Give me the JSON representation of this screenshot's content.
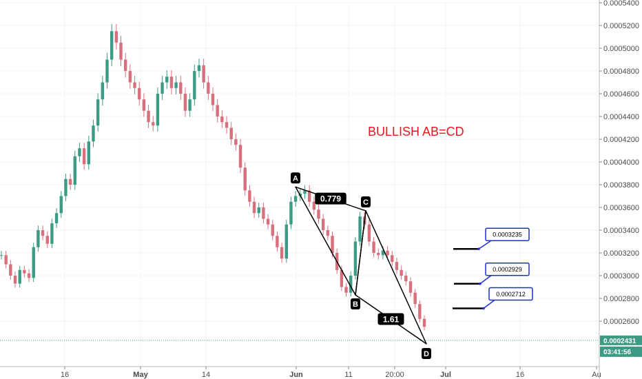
{
  "chart_data": {
    "type": "candlestick",
    "title": "BULLISH AB=CD",
    "y_axis": {
      "min": 0.000235,
      "max": 0.00054,
      "ticks": [
        "0.0005400",
        "0.0005200",
        "0.0005000",
        "0.0004800",
        "0.0004600",
        "0.0004400",
        "0.0004200",
        "0.0004000",
        "0.0003800",
        "0.0003600",
        "0.0003400",
        "0.0003200",
        "0.0003000",
        "0.0002800",
        "0.0002600"
      ],
      "current_price": "0.0002431",
      "countdown": "03:41:56"
    },
    "x_axis": {
      "ticks": [
        "16",
        "May",
        "14",
        "Jun",
        "11",
        "20:00",
        "Jul",
        "16",
        "Au"
      ],
      "bold_ticks": [
        "May",
        "Jun",
        "Jul"
      ]
    },
    "pattern": {
      "points": [
        {
          "label": "A",
          "value": 0.000378
        },
        {
          "label": "B",
          "value": 0.000283
        },
        {
          "label": "C",
          "value": 0.000357
        },
        {
          "label": "D",
          "value": 0.00024
        }
      ],
      "ratios": [
        "0.779",
        "1.61"
      ]
    },
    "targets": [
      "0.0003235",
      "0.0002929",
      "0.0002712"
    ],
    "series_close": [
      0.000318,
      0.00031,
      0.0003,
      0.000293,
      0.000305,
      0.000302,
      0.000298,
      0.000325,
      0.00034,
      0.000335,
      0.000328,
      0.000346,
      0.000355,
      0.00037,
      0.000385,
      0.00038,
      0.000405,
      0.000412,
      0.000398,
      0.000418,
      0.000432,
      0.000455,
      0.00047,
      0.00049,
      0.000515,
      0.000505,
      0.00049,
      0.00048,
      0.00047,
      0.000465,
      0.000455,
      0.000445,
      0.000435,
      0.000432,
      0.00046,
      0.00047,
      0.000475,
      0.000465,
      0.00047,
      0.00046,
      0.000445,
      0.000455,
      0.00048,
      0.000485,
      0.00047,
      0.00046,
      0.00045,
      0.00044,
      0.000435,
      0.00043,
      0.00042,
      0.000415,
      0.000395,
      0.000375,
      0.000365,
      0.000355,
      0.00036,
      0.00035,
      0.000345,
      0.000335,
      0.000325,
      0.000315,
      0.000345,
      0.000365,
      0.00037,
      0.000372,
      0.000375,
      0.000365,
      0.000358,
      0.00035,
      0.00034,
      0.000335,
      0.00032,
      0.000305,
      0.00029,
      0.000285,
      0.0003,
      0.00033,
      0.000352,
      0.000345,
      0.00033,
      0.00032,
      0.000318,
      0.000322,
      0.000318,
      0.000312,
      0.000305,
      0.0003,
      0.000295,
      0.000285,
      0.000275,
      0.000262,
      0.000255
    ]
  }
}
